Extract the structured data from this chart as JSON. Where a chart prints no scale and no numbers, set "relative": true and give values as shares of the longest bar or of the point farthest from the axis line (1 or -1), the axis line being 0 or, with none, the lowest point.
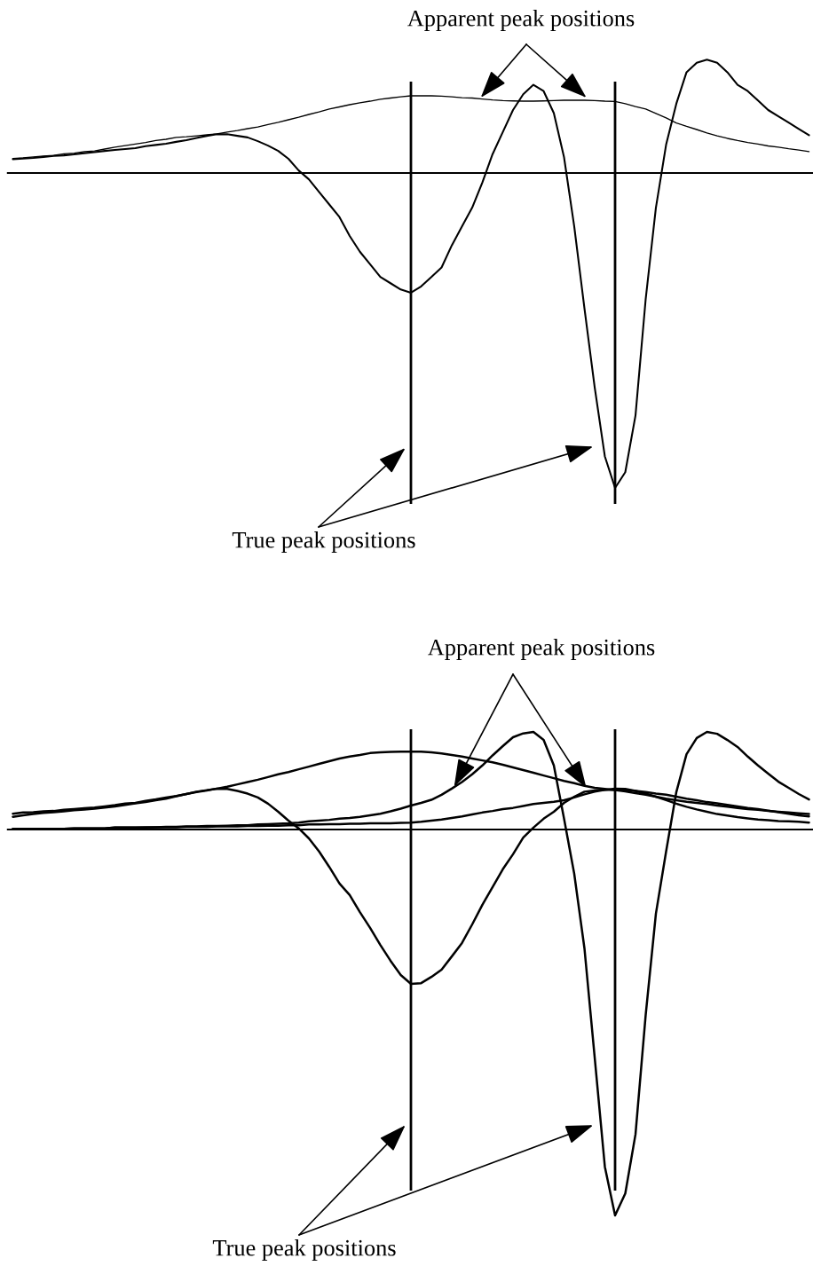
{
  "chart_data": [
    {
      "type": "line",
      "relative": true,
      "categories": [
        null,
        null,
        null,
        null,
        null,
        null,
        null,
        null,
        null,
        null,
        null,
        null,
        null,
        null,
        null,
        null,
        null,
        null,
        null,
        null,
        null,
        null,
        null,
        null,
        null,
        null,
        null,
        null,
        null,
        null,
        null,
        null,
        null,
        null,
        null,
        null,
        null,
        null,
        null,
        null,
        null,
        null,
        null,
        null,
        null,
        null,
        null,
        null,
        null,
        null,
        null,
        null,
        null,
        null,
        null,
        null,
        null,
        null,
        null,
        null,
        null,
        null,
        null,
        null,
        null,
        null,
        null,
        null,
        null,
        null,
        null,
        null,
        null,
        null,
        null,
        null,
        null,
        null,
        null
      ],
      "series": [
        {
          "color": "#000000",
          "values": [
            0.046,
            0.048,
            0.051,
            0.054,
            0.056,
            0.061,
            0.063,
            0.068,
            0.07,
            0.076,
            0.082,
            0.087,
            0.092,
            0.097,
            0.103,
            0.107,
            0.113,
            0.115,
            0.118,
            0.121,
            0.124,
            0.13,
            0.135,
            0.141,
            0.146,
            0.154,
            0.161,
            0.169,
            0.177,
            0.186,
            0.194,
            0.203,
            0.21,
            0.217,
            0.223,
            0.228,
            0.234,
            0.238,
            0.242,
            0.245,
            0.245,
            0.245,
            0.244,
            0.242,
            0.239,
            0.238,
            0.235,
            0.232,
            0.23,
            0.229,
            0.228,
            0.228,
            0.229,
            0.23,
            0.231,
            0.231,
            0.231,
            0.23,
            0.228,
            0.227,
            0.22,
            0.211,
            0.203,
            0.189,
            0.175,
            0.159,
            0.148,
            0.138,
            0.127,
            0.118,
            0.11,
            0.103,
            0.097,
            0.092,
            0.086,
            0.082,
            0.077,
            0.073,
            0.068
          ]
        },
        {
          "color": "#000000",
          "values": [
            0.044,
            0.046,
            0.048,
            0.051,
            0.054,
            0.056,
            0.059,
            0.063,
            0.066,
            0.07,
            0.073,
            0.076,
            0.079,
            0.085,
            0.089,
            0.093,
            0.099,
            0.104,
            0.111,
            0.118,
            0.123,
            0.123,
            0.118,
            0.113,
            0.101,
            0.087,
            0.07,
            0.045,
            0.008,
            -0.02,
            -0.06,
            -0.1,
            -0.14,
            -0.2,
            -0.25,
            -0.29,
            -0.33,
            -0.35,
            -0.37,
            -0.38,
            -0.36,
            -0.33,
            -0.3,
            -0.23,
            -0.17,
            -0.11,
            -0.03,
            0.06,
            0.13,
            0.2,
            0.25,
            0.28,
            0.26,
            0.19,
            0.05,
            -0.17,
            -0.43,
            -0.68,
            -0.9,
            -1.0,
            -0.95,
            -0.77,
            -0.4,
            -0.11,
            0.09,
            0.22,
            0.32,
            0.35,
            0.36,
            0.35,
            0.32,
            0.28,
            0.26,
            0.23,
            0.2,
            0.18,
            0.16,
            0.14,
            0.12
          ]
        }
      ],
      "annotations": [
        "Apparent peak positions",
        "True peak positions"
      ]
    },
    {
      "type": "line",
      "relative": true,
      "categories": [
        null,
        null,
        null,
        null,
        null,
        null,
        null,
        null,
        null,
        null,
        null,
        null,
        null,
        null,
        null,
        null,
        null,
        null,
        null,
        null,
        null,
        null,
        null,
        null,
        null,
        null,
        null,
        null,
        null,
        null,
        null,
        null,
        null,
        null,
        null,
        null,
        null,
        null,
        null,
        null,
        null,
        null,
        null,
        null,
        null,
        null,
        null,
        null,
        null,
        null,
        null,
        null,
        null,
        null,
        null,
        null,
        null,
        null,
        null,
        null,
        null,
        null,
        null,
        null,
        null,
        null,
        null,
        null,
        null,
        null,
        null,
        null,
        null,
        null,
        null,
        null,
        null,
        null,
        null
      ],
      "series": [
        {
          "color": "#000000",
          "values": [
            0.041,
            0.044,
            0.045,
            0.047,
            0.048,
            0.051,
            0.053,
            0.055,
            0.057,
            0.06,
            0.063,
            0.067,
            0.069,
            0.074,
            0.078,
            0.083,
            0.087,
            0.092,
            0.097,
            0.101,
            0.106,
            0.111,
            0.117,
            0.123,
            0.129,
            0.136,
            0.143,
            0.149,
            0.156,
            0.163,
            0.17,
            0.177,
            0.184,
            0.189,
            0.193,
            0.198,
            0.2,
            0.201,
            0.202,
            0.202,
            0.202,
            0.2,
            0.197,
            0.193,
            0.189,
            0.184,
            0.179,
            0.174,
            0.168,
            0.161,
            0.154,
            0.147,
            0.14,
            0.133,
            0.126,
            0.12,
            0.113,
            0.108,
            0.105,
            0.102,
            0.099,
            0.094,
            0.09,
            0.085,
            0.08,
            0.076,
            0.072,
            0.069,
            0.066,
            0.062,
            0.059,
            0.056,
            0.053,
            0.051,
            0.048,
            0.046,
            0.044,
            0.042,
            0.04
          ]
        },
        {
          "color": "#000000",
          "values": [
            0.002,
            0.002,
            0.002,
            0.002,
            0.002,
            0.002,
            0.003,
            0.003,
            0.003,
            0.003,
            0.005,
            0.005,
            0.005,
            0.005,
            0.006,
            0.006,
            0.006,
            0.007,
            0.007,
            0.007,
            0.008,
            0.008,
            0.008,
            0.009,
            0.009,
            0.01,
            0.01,
            0.011,
            0.011,
            0.013,
            0.013,
            0.014,
            0.014,
            0.015,
            0.015,
            0.016,
            0.016,
            0.016,
            0.017,
            0.018,
            0.02,
            0.023,
            0.026,
            0.03,
            0.034,
            0.039,
            0.044,
            0.048,
            0.053,
            0.056,
            0.061,
            0.066,
            0.069,
            0.072,
            0.076,
            0.083,
            0.091,
            0.098,
            0.103,
            0.106,
            0.105,
            0.1,
            0.093,
            0.085,
            0.076,
            0.067,
            0.059,
            0.052,
            0.046,
            0.04,
            0.036,
            0.032,
            0.029,
            0.026,
            0.024,
            0.022,
            0.021,
            0.02,
            0.018
          ]
        },
        {
          "color": "#000000",
          "values": [
            0.033,
            0.037,
            0.04,
            0.043,
            0.045,
            0.047,
            0.05,
            0.052,
            0.054,
            0.057,
            0.06,
            0.064,
            0.068,
            0.071,
            0.076,
            0.08,
            0.086,
            0.092,
            0.098,
            0.102,
            0.106,
            0.105,
            0.1,
            0.093,
            0.083,
            0.067,
            0.046,
            0.023,
            0.003,
            -0.023,
            -0.057,
            -0.097,
            -0.14,
            -0.17,
            -0.214,
            -0.255,
            -0.299,
            -0.34,
            -0.377,
            -0.4,
            -0.398,
            -0.382,
            -0.363,
            -0.329,
            -0.294,
            -0.246,
            -0.195,
            -0.149,
            -0.103,
            -0.064,
            -0.021,
            0.005,
            0.028,
            0.046,
            0.069,
            0.085,
            0.098,
            0.101,
            0.103,
            0.103,
            0.102,
            0.1,
            0.097,
            0.093,
            0.09,
            0.085,
            0.08,
            0.076,
            0.071,
            0.068,
            0.064,
            0.06,
            0.056,
            0.053,
            0.049,
            0.045,
            0.041,
            0.037,
            0.034
          ]
        },
        {
          "color": "#000000",
          "values": [
            0.002,
            0.002,
            0.002,
            0.002,
            0.002,
            0.002,
            0.003,
            0.003,
            0.003,
            0.003,
            0.005,
            0.005,
            0.005,
            0.006,
            0.006,
            0.007,
            0.007,
            0.008,
            0.008,
            0.009,
            0.009,
            0.01,
            0.011,
            0.011,
            0.013,
            0.014,
            0.015,
            0.016,
            0.018,
            0.021,
            0.023,
            0.025,
            0.028,
            0.03,
            0.033,
            0.037,
            0.041,
            0.047,
            0.054,
            0.062,
            0.069,
            0.077,
            0.09,
            0.106,
            0.123,
            0.143,
            0.166,
            0.192,
            0.216,
            0.239,
            0.249,
            0.253,
            0.232,
            0.166,
            0.028,
            -0.115,
            -0.308,
            -0.59,
            -0.874,
            -1.0,
            -0.943,
            -0.79,
            -0.48,
            -0.218,
            -0.057,
            0.097,
            0.195,
            0.237,
            0.253,
            0.248,
            0.232,
            0.214,
            0.189,
            0.166,
            0.145,
            0.124,
            0.108,
            0.092,
            0.078
          ]
        }
      ],
      "annotations": [
        "Apparent peak positions",
        "True peak positions"
      ]
    }
  ]
}
